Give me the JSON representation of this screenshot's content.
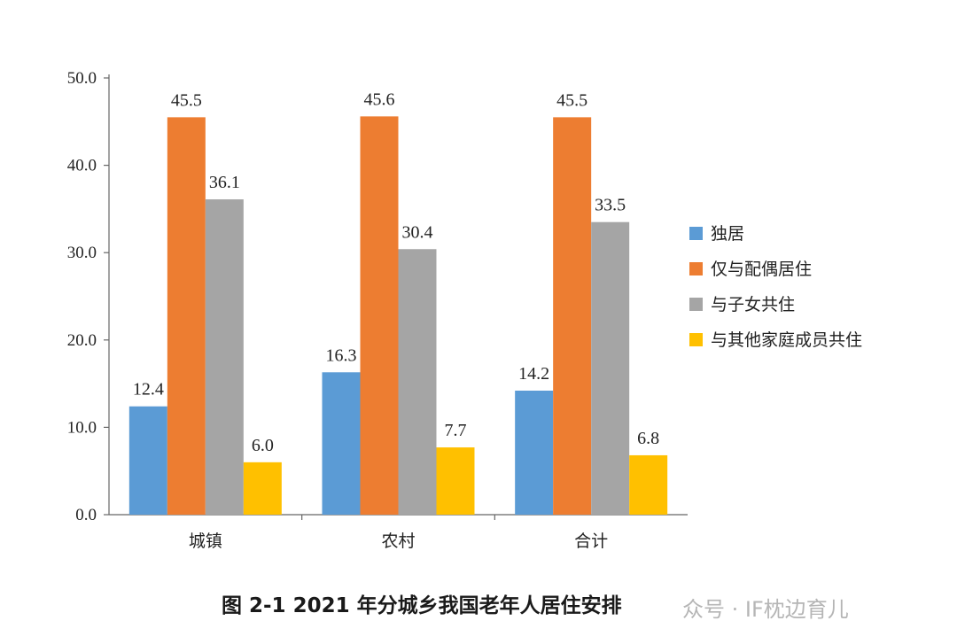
{
  "chart_data": {
    "type": "bar",
    "categories": [
      "城镇",
      "农村",
      "合计"
    ],
    "series": [
      {
        "name": "独居",
        "values": [
          12.4,
          16.3,
          14.2
        ],
        "color": "#5b9bd5"
      },
      {
        "name": "仅与配偶居住",
        "values": [
          45.5,
          45.6,
          45.5
        ],
        "color": "#ed7d31"
      },
      {
        "name": "与子女共住",
        "values": [
          36.1,
          30.4,
          33.5
        ],
        "color": "#a5a5a5"
      },
      {
        "name": "与其他家庭成员共住",
        "values": [
          6.0,
          7.7,
          6.8
        ],
        "color": "#ffc000"
      }
    ],
    "yticks": [
      "0.0",
      "10.0",
      "20.0",
      "30.0",
      "40.0",
      "50.0"
    ],
    "ylim": [
      0,
      50
    ],
    "legend": "right",
    "grid": false,
    "title": "图 2-1 2021 年分城乡我国老年人居住安排"
  },
  "watermark": "众号 · IF枕边育儿"
}
